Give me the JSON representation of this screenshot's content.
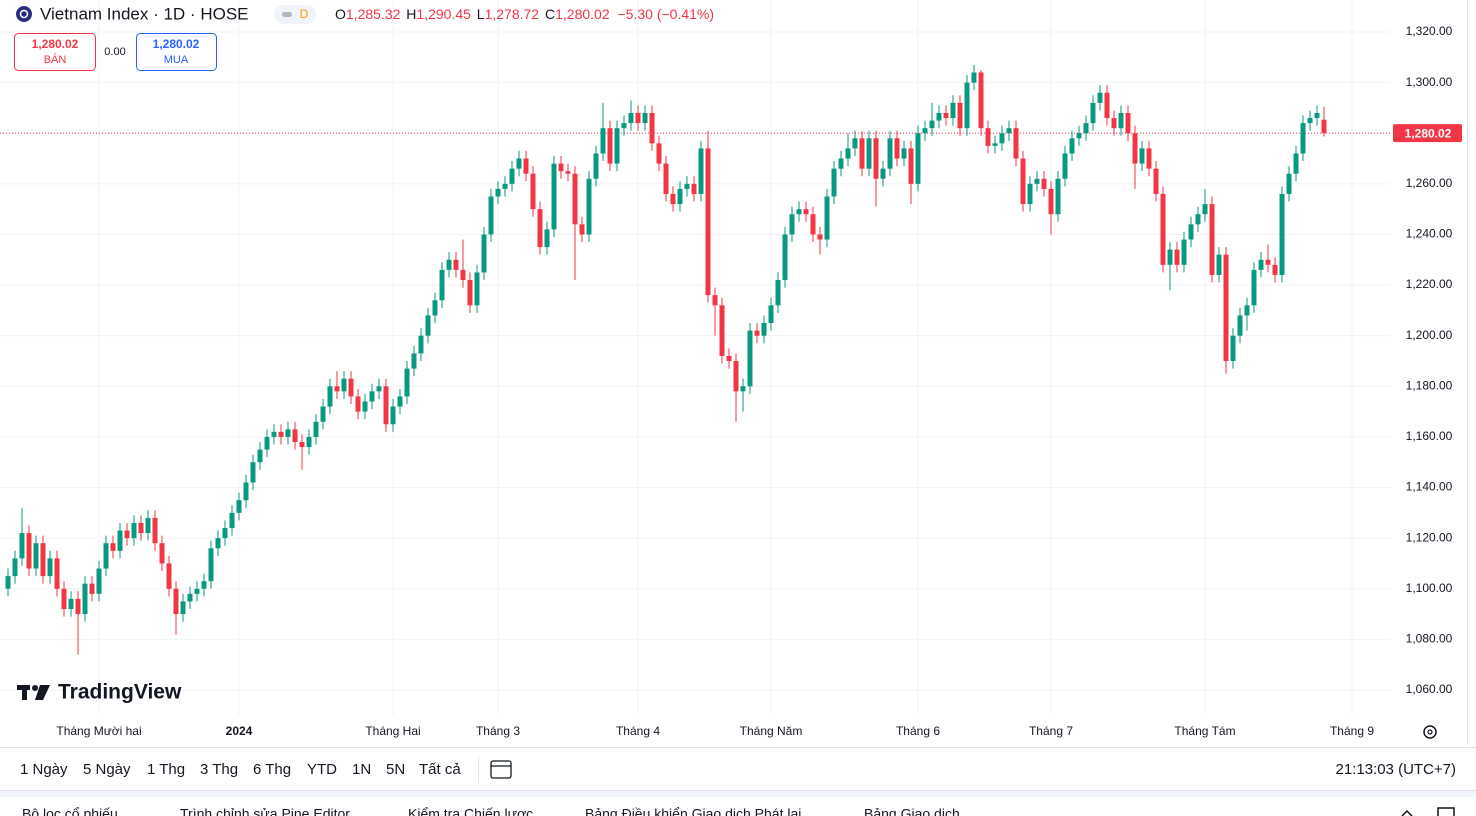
{
  "chart_data": {
    "type": "candlestick",
    "title": "Vietnam Index · 1D · HOSE",
    "interval_badge": "D",
    "ohlc_legend": [
      {
        "key": "O",
        "value": "1,285.32"
      },
      {
        "key": "H",
        "value": "1,290.45"
      },
      {
        "key": "L",
        "value": "1,278.72"
      },
      {
        "key": "C",
        "value": "1,280.02"
      }
    ],
    "change": "−5.30 (−0.41%)",
    "up_color": "#089981",
    "down_color": "#f23645",
    "categories": [
      null,
      null,
      null,
      null,
      null,
      null,
      null,
      null,
      null,
      null,
      null,
      null,
      null,
      "Tháng Mười hai",
      null,
      null,
      null,
      null,
      null,
      null,
      null,
      null,
      null,
      null,
      null,
      null,
      null,
      null,
      null,
      null,
      null,
      null,
      null,
      "2024",
      null,
      null,
      null,
      null,
      null,
      null,
      null,
      null,
      null,
      null,
      null,
      null,
      null,
      null,
      null,
      null,
      null,
      null,
      null,
      null,
      null,
      "Tháng Hai",
      null,
      null,
      null,
      null,
      null,
      null,
      null,
      null,
      null,
      null,
      null,
      null,
      null,
      null,
      "Tháng 3",
      null,
      null,
      null,
      null,
      null,
      null,
      null,
      null,
      null,
      null,
      null,
      null,
      null,
      null,
      null,
      null,
      null,
      null,
      null,
      "Tháng 4",
      null,
      null,
      null,
      null,
      null,
      null,
      null,
      null,
      null,
      null,
      null,
      null,
      null,
      null,
      null,
      null,
      null,
      null,
      "Tháng Năm",
      null,
      null,
      null,
      null,
      null,
      null,
      null,
      null,
      null,
      null,
      null,
      null,
      null,
      null,
      null,
      null,
      null,
      null,
      null,
      null,
      "Tháng 6",
      null,
      null,
      null,
      null,
      null,
      null,
      null,
      null,
      null,
      null,
      null,
      null,
      null,
      null,
      null,
      null,
      null,
      null,
      "Tháng 7",
      null,
      null,
      null,
      null,
      null,
      null,
      null,
      null,
      null,
      null,
      null,
      null,
      null,
      null,
      null,
      null,
      null,
      null,
      null,
      null,
      null,
      "Tháng Tám",
      null,
      null,
      null,
      null,
      null,
      null,
      null,
      null,
      null,
      null,
      null,
      null,
      null,
      null,
      null,
      null,
      null,
      null,
      null,
      null,
      "Tháng 9"
    ],
    "open": [
      1100,
      1105,
      1112,
      1122,
      1108,
      1118,
      1105,
      1112,
      1100,
      1092,
      1096,
      1090,
      1102,
      1098,
      1108,
      1118,
      1115,
      1123,
      1120,
      1126,
      1122,
      1128,
      1118,
      1110,
      1100,
      1090,
      1095,
      1098,
      1100,
      1103,
      1116,
      1120,
      1124,
      1130,
      1135,
      1142,
      1150,
      1155,
      1160,
      1162,
      1160,
      1163,
      1158,
      1156,
      1160,
      1166,
      1172,
      1180,
      1178,
      1183,
      1176,
      1170,
      1174,
      1178,
      1180,
      1165,
      1172,
      1176,
      1187,
      1193,
      1200,
      1208,
      1214,
      1226,
      1230,
      1226,
      1222,
      1212,
      1225,
      1240,
      1255,
      1258,
      1260,
      1266,
      1270,
      1264,
      1250,
      1235,
      1242,
      1268,
      1265,
      1264,
      1244,
      1240,
      1262,
      1272,
      1282,
      1268,
      1282,
      1284,
      1288,
      1284,
      1288,
      1276,
      1268,
      1256,
      1252,
      1258,
      1260,
      1256,
      1274,
      1216,
      1212,
      1192,
      1190,
      1178,
      1180,
      1202,
      1200,
      1205,
      1212,
      1222,
      1240,
      1248,
      1250,
      1248,
      1240,
      1238,
      1255,
      1266,
      1270,
      1274,
      1278,
      1266,
      1278,
      1262,
      1266,
      1278,
      1270,
      1274,
      1260,
      1280,
      1282,
      1285,
      1288,
      1286,
      1292,
      1282,
      1300,
      1304,
      1282,
      1275,
      1276,
      1280,
      1282,
      1270,
      1252,
      1260,
      1262,
      1258,
      1248,
      1262,
      1272,
      1278,
      1280,
      1284,
      1292,
      1296,
      1286,
      1282,
      1288,
      1280,
      1268,
      1274,
      1266,
      1256,
      1228,
      1234,
      1228,
      1238,
      1244,
      1248,
      1252,
      1224,
      1232,
      1190,
      1200,
      1208,
      1212,
      1226,
      1230,
      1228,
      1224,
      1256,
      1264,
      1272,
      1284,
      1286,
      1285.32,
      null,
      null,
      null,
      null
    ],
    "high": [
      1108,
      1115,
      1132,
      1125,
      1121,
      1121,
      1115,
      1115,
      1103,
      1099,
      1099,
      1105,
      1105,
      1111,
      1121,
      1121,
      1126,
      1126,
      1129,
      1129,
      1131,
      1131,
      1121,
      1113,
      1103,
      1098,
      1101,
      1103,
      1106,
      1119,
      1123,
      1127,
      1133,
      1138,
      1145,
      1153,
      1158,
      1163,
      1165,
      1165,
      1166,
      1166,
      1161,
      1163,
      1169,
      1175,
      1183,
      1186,
      1186,
      1186,
      1179,
      1177,
      1181,
      1183,
      1183,
      1175,
      1179,
      1190,
      1196,
      1203,
      1211,
      1217,
      1229,
      1233,
      1233,
      1238,
      1225,
      1228,
      1243,
      1258,
      1261,
      1263,
      1269,
      1273,
      1273,
      1267,
      1253,
      1245,
      1271,
      1271,
      1268,
      1267,
      1247,
      1265,
      1275,
      1292,
      1285,
      1285,
      1287,
      1293,
      1291,
      1291,
      1291,
      1279,
      1271,
      1259,
      1261,
      1263,
      1263,
      1277,
      1281,
      1219,
      1215,
      1195,
      1193,
      1183,
      1205,
      1205,
      1208,
      1215,
      1225,
      1243,
      1251,
      1253,
      1253,
      1251,
      1243,
      1258,
      1269,
      1273,
      1280,
      1281,
      1281,
      1281,
      1281,
      1269,
      1281,
      1281,
      1277,
      1277,
      1283,
      1285,
      1292,
      1291,
      1291,
      1295,
      1295,
      1303,
      1307,
      1305,
      1285,
      1279,
      1283,
      1285,
      1285,
      1273,
      1263,
      1265,
      1265,
      1261,
      1265,
      1275,
      1281,
      1283,
      1287,
      1295,
      1299,
      1299,
      1289,
      1291,
      1291,
      1283,
      1277,
      1277,
      1269,
      1259,
      1237,
      1237,
      1241,
      1247,
      1251,
      1258,
      1255,
      1235,
      1235,
      1203,
      1211,
      1215,
      1229,
      1233,
      1236,
      1231,
      1259,
      1267,
      1275,
      1287,
      1289,
      1291,
      1290.45,
      null,
      null,
      null,
      null
    ],
    "low": [
      1097,
      1102,
      1109,
      1105,
      1105,
      1102,
      1102,
      1097,
      1089,
      1089,
      1074,
      1087,
      1095,
      1095,
      1105,
      1112,
      1112,
      1117,
      1117,
      1119,
      1119,
      1115,
      1107,
      1097,
      1082,
      1087,
      1092,
      1095,
      1097,
      1100,
      1113,
      1117,
      1121,
      1127,
      1132,
      1139,
      1147,
      1152,
      1157,
      1157,
      1157,
      1155,
      1147,
      1153,
      1157,
      1163,
      1169,
      1175,
      1175,
      1173,
      1167,
      1167,
      1171,
      1175,
      1162,
      1162,
      1169,
      1173,
      1184,
      1190,
      1197,
      1205,
      1211,
      1223,
      1223,
      1219,
      1209,
      1209,
      1222,
      1237,
      1252,
      1255,
      1257,
      1263,
      1261,
      1247,
      1232,
      1232,
      1239,
      1262,
      1261,
      1222,
      1237,
      1237,
      1259,
      1269,
      1265,
      1265,
      1279,
      1281,
      1281,
      1281,
      1273,
      1265,
      1253,
      1249,
      1249,
      1255,
      1253,
      1253,
      1213,
      1200,
      1189,
      1187,
      1166,
      1170,
      1177,
      1197,
      1197,
      1202,
      1209,
      1219,
      1237,
      1245,
      1245,
      1237,
      1232,
      1235,
      1252,
      1263,
      1267,
      1271,
      1263,
      1263,
      1251,
      1259,
      1263,
      1267,
      1267,
      1252,
      1257,
      1277,
      1279,
      1282,
      1283,
      1283,
      1279,
      1279,
      1297,
      1279,
      1272,
      1272,
      1273,
      1277,
      1267,
      1249,
      1249,
      1257,
      1255,
      1240,
      1245,
      1259,
      1269,
      1275,
      1277,
      1281,
      1289,
      1283,
      1279,
      1279,
      1277,
      1258,
      1265,
      1263,
      1253,
      1225,
      1218,
      1225,
      1225,
      1235,
      1241,
      1245,
      1221,
      1221,
      1185,
      1187,
      1197,
      1202,
      1209,
      1223,
      1225,
      1221,
      1221,
      1253,
      1261,
      1269,
      1281,
      1283,
      1278.72,
      null,
      null,
      null,
      null
    ],
    "close": [
      1105,
      1112,
      1122,
      1108,
      1118,
      1105,
      1112,
      1100,
      1092,
      1096,
      1090,
      1102,
      1098,
      1108,
      1118,
      1115,
      1123,
      1120,
      1126,
      1122,
      1128,
      1118,
      1110,
      1100,
      1090,
      1095,
      1098,
      1100,
      1103,
      1116,
      1120,
      1124,
      1130,
      1135,
      1142,
      1150,
      1155,
      1160,
      1162,
      1160,
      1163,
      1158,
      1156,
      1160,
      1166,
      1172,
      1180,
      1178,
      1183,
      1176,
      1170,
      1174,
      1178,
      1180,
      1165,
      1172,
      1176,
      1187,
      1193,
      1200,
      1208,
      1214,
      1226,
      1230,
      1226,
      1222,
      1212,
      1225,
      1240,
      1255,
      1258,
      1260,
      1266,
      1270,
      1264,
      1250,
      1235,
      1242,
      1268,
      1265,
      1264,
      1244,
      1240,
      1262,
      1272,
      1282,
      1268,
      1282,
      1284,
      1288,
      1284,
      1288,
      1276,
      1268,
      1256,
      1252,
      1258,
      1260,
      1256,
      1274,
      1216,
      1212,
      1192,
      1190,
      1178,
      1180,
      1202,
      1200,
      1205,
      1212,
      1222,
      1240,
      1248,
      1250,
      1248,
      1240,
      1238,
      1255,
      1266,
      1270,
      1274,
      1278,
      1266,
      1278,
      1262,
      1266,
      1278,
      1270,
      1274,
      1260,
      1280,
      1282,
      1285,
      1288,
      1286,
      1292,
      1282,
      1300,
      1304,
      1282,
      1275,
      1276,
      1280,
      1282,
      1270,
      1252,
      1260,
      1262,
      1258,
      1248,
      1262,
      1272,
      1278,
      1280,
      1284,
      1292,
      1296,
      1286,
      1282,
      1288,
      1280,
      1268,
      1274,
      1266,
      1256,
      1228,
      1234,
      1228,
      1238,
      1244,
      1248,
      1252,
      1224,
      1232,
      1190,
      1200,
      1208,
      1212,
      1226,
      1230,
      1228,
      1224,
      1256,
      1264,
      1272,
      1284,
      1286,
      1288,
      1280.02,
      null,
      null,
      null,
      null
    ],
    "ylim": [
      1050.12,
      1332.64
    ],
    "yticks": [
      {
        "value": 1060,
        "label": "1,060.00"
      },
      {
        "value": 1080,
        "label": "1,080.00"
      },
      {
        "value": 1100,
        "label": "1,100.00"
      },
      {
        "value": 1120,
        "label": "1,120.00"
      },
      {
        "value": 1140,
        "label": "1,140.00"
      },
      {
        "value": 1160,
        "label": "1,160.00"
      },
      {
        "value": 1180,
        "label": "1,180.00"
      },
      {
        "value": 1200,
        "label": "1,200.00"
      },
      {
        "value": 1220,
        "label": "1,220.00"
      },
      {
        "value": 1240,
        "label": "1,240.00"
      },
      {
        "value": 1260,
        "label": "1,260.00"
      },
      {
        "value": 1280,
        "label": "1,280.00"
      },
      {
        "value": 1300,
        "label": "1,300.00"
      },
      {
        "value": 1320,
        "label": "1,320.00"
      }
    ],
    "last_price": {
      "value": 1280.02,
      "label": "1,280.02"
    },
    "grid": true
  },
  "trade": {
    "sell": {
      "price": "1,280.02",
      "label": "BÁN"
    },
    "spread": "0.00",
    "buy": {
      "price": "1,280.02",
      "label": "MUA"
    }
  },
  "watermark": "TradingView",
  "toolbar": {
    "ranges": [
      "1 Ngày",
      "5 Ngày",
      "1 Thg",
      "3 Thg",
      "6 Thg",
      "YTD",
      "1N",
      "5N",
      "Tất cả"
    ],
    "clock": "21:13:03 (UTC+7)"
  },
  "tabs": [
    "Bộ lọc cổ phiếu",
    "Trình chỉnh sửa Pine Editor",
    "Kiểm tra Chiến lược",
    "Bảng Điều khiển Giao dịch Phát lại",
    "Bảng Giao dịch"
  ]
}
